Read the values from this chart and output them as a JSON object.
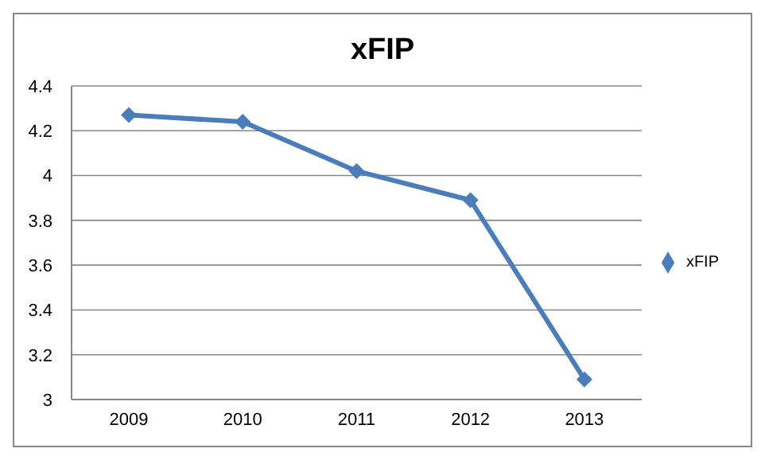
{
  "chart_data": {
    "type": "line",
    "title": "xFIP",
    "categories": [
      "2009",
      "2010",
      "2011",
      "2012",
      "2013"
    ],
    "series": [
      {
        "name": "xFIP",
        "color": "#4a7ebb",
        "values": [
          4.27,
          4.24,
          4.02,
          3.89,
          3.09
        ]
      }
    ],
    "ylim": [
      3,
      4.4
    ],
    "yticks": [
      3,
      3.2,
      3.4,
      3.6,
      3.8,
      4,
      4.2,
      4.4
    ],
    "grid": "y",
    "legend": "right",
    "marker": "diamond",
    "line_style": "solid"
  }
}
